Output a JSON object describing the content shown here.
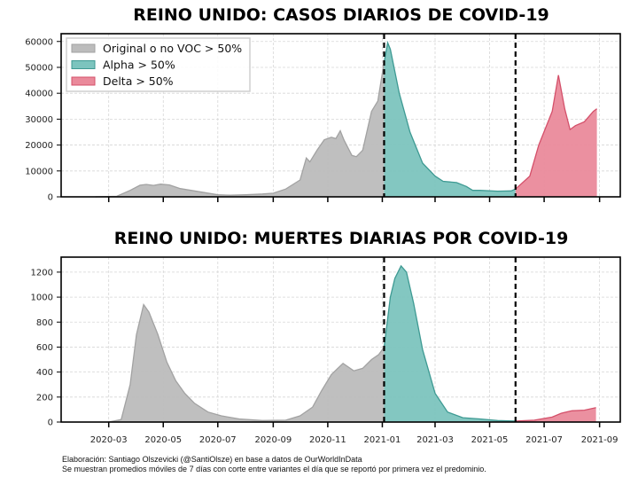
{
  "chart_data": [
    {
      "type": "area",
      "title": "REINO UNIDO: CASOS DIARIOS DE COVID-19",
      "xlim": [
        "2020-01-08",
        "2021-09-24"
      ],
      "ylim": [
        0,
        63000
      ],
      "yticks": [
        0,
        10000,
        20000,
        30000,
        40000,
        50000,
        60000
      ],
      "xticks": [
        "2020-03",
        "2020-05",
        "2020-07",
        "2020-09",
        "2020-11",
        "2021-01",
        "2021-03",
        "2021-05",
        "2021-07",
        "2021-09"
      ],
      "xtick_labels_shown": false,
      "grid": true,
      "legend_position": "top-left",
      "vlines": [
        "2021-01-03",
        "2021-05-30"
      ],
      "series": [
        {
          "name": "Original o no VOC > 50%",
          "color": "#bcbcbc",
          "stroke": "#a2a2a2",
          "points": [
            [
              "2020-02-15",
              0
            ],
            [
              "2020-03-10",
              200
            ],
            [
              "2020-03-25",
              2500
            ],
            [
              "2020-04-05",
              4500
            ],
            [
              "2020-04-12",
              4800
            ],
            [
              "2020-04-20",
              4400
            ],
            [
              "2020-04-28",
              4900
            ],
            [
              "2020-05-08",
              4600
            ],
            [
              "2020-05-20",
              3200
            ],
            [
              "2020-06-10",
              2000
            ],
            [
              "2020-07-01",
              800
            ],
            [
              "2020-07-15",
              600
            ],
            [
              "2020-08-01",
              800
            ],
            [
              "2020-08-20",
              1100
            ],
            [
              "2020-09-01",
              1400
            ],
            [
              "2020-09-15",
              3000
            ],
            [
              "2020-10-01",
              6500
            ],
            [
              "2020-10-08",
              15000
            ],
            [
              "2020-10-12",
              13500
            ],
            [
              "2020-10-20",
              18000
            ],
            [
              "2020-10-28",
              22000
            ],
            [
              "2020-11-05",
              23000
            ],
            [
              "2020-11-10",
              22500
            ],
            [
              "2020-11-15",
              25500
            ],
            [
              "2020-11-19",
              22000
            ],
            [
              "2020-11-28",
              16000
            ],
            [
              "2020-12-03",
              15500
            ],
            [
              "2020-12-10",
              18000
            ],
            [
              "2020-12-20",
              33000
            ],
            [
              "2020-12-27",
              37000
            ],
            [
              "2021-01-03",
              52000
            ]
          ]
        },
        {
          "name": "Alpha > 50%",
          "color": "#7cc4be",
          "stroke": "#3e9a93",
          "points": [
            [
              "2021-01-03",
              52000
            ],
            [
              "2021-01-07",
              59500
            ],
            [
              "2021-01-10",
              57000
            ],
            [
              "2021-01-20",
              40000
            ],
            [
              "2021-02-01",
              25000
            ],
            [
              "2021-02-15",
              13000
            ],
            [
              "2021-03-01",
              8000
            ],
            [
              "2021-03-10",
              6000
            ],
            [
              "2021-03-25",
              5500
            ],
            [
              "2021-04-05",
              4000
            ],
            [
              "2021-04-12",
              2500
            ],
            [
              "2021-04-20",
              2500
            ],
            [
              "2021-05-10",
              2200
            ],
            [
              "2021-05-25",
              2300
            ],
            [
              "2021-05-30",
              3000
            ]
          ]
        },
        {
          "name": "Delta > 50%",
          "color": "#ea8a9b",
          "stroke": "#d4506a",
          "points": [
            [
              "2021-05-30",
              3000
            ],
            [
              "2021-06-15",
              8000
            ],
            [
              "2021-06-25",
              20000
            ],
            [
              "2021-07-10",
              33000
            ],
            [
              "2021-07-17",
              47000
            ],
            [
              "2021-07-24",
              34000
            ],
            [
              "2021-07-30",
              26000
            ],
            [
              "2021-08-05",
              27500
            ],
            [
              "2021-08-15",
              29000
            ],
            [
              "2021-08-25",
              33000
            ],
            [
              "2021-08-29",
              34000
            ]
          ]
        }
      ]
    },
    {
      "type": "area",
      "title": "REINO UNIDO: MUERTES DIARIAS POR COVID-19",
      "xlim": [
        "2020-01-08",
        "2021-09-24"
      ],
      "ylim": [
        0,
        1320
      ],
      "yticks": [
        0,
        200,
        400,
        600,
        800,
        1000,
        1200
      ],
      "xticks": [
        "2020-03",
        "2020-05",
        "2020-07",
        "2020-09",
        "2020-11",
        "2021-01",
        "2021-03",
        "2021-05",
        "2021-07",
        "2021-09"
      ],
      "xtick_labels_shown": true,
      "grid": true,
      "vlines": [
        "2021-01-03",
        "2021-05-30"
      ],
      "series": [
        {
          "color": "#bcbcbc",
          "stroke": "#a2a2a2",
          "points": [
            [
              "2020-03-01",
              0
            ],
            [
              "2020-03-15",
              20
            ],
            [
              "2020-03-25",
              300
            ],
            [
              "2020-04-01",
              700
            ],
            [
              "2020-04-09",
              940
            ],
            [
              "2020-04-15",
              880
            ],
            [
              "2020-04-25",
              700
            ],
            [
              "2020-05-05",
              480
            ],
            [
              "2020-05-15",
              330
            ],
            [
              "2020-05-25",
              230
            ],
            [
              "2020-06-05",
              150
            ],
            [
              "2020-06-20",
              80
            ],
            [
              "2020-07-05",
              50
            ],
            [
              "2020-07-25",
              25
            ],
            [
              "2020-08-20",
              12
            ],
            [
              "2020-09-15",
              15
            ],
            [
              "2020-10-01",
              50
            ],
            [
              "2020-10-15",
              120
            ],
            [
              "2020-10-25",
              250
            ],
            [
              "2020-11-05",
              380
            ],
            [
              "2020-11-18",
              470
            ],
            [
              "2020-11-30",
              410
            ],
            [
              "2020-12-10",
              430
            ],
            [
              "2020-12-20",
              500
            ],
            [
              "2020-12-28",
              540
            ],
            [
              "2021-01-03",
              600
            ]
          ]
        },
        {
          "color": "#7cc4be",
          "stroke": "#3e9a93",
          "points": [
            [
              "2021-01-03",
              600
            ],
            [
              "2021-01-10",
              1000
            ],
            [
              "2021-01-15",
              1150
            ],
            [
              "2021-01-22",
              1250
            ],
            [
              "2021-01-28",
              1200
            ],
            [
              "2021-02-05",
              950
            ],
            [
              "2021-02-15",
              580
            ],
            [
              "2021-03-01",
              230
            ],
            [
              "2021-03-15",
              80
            ],
            [
              "2021-04-01",
              35
            ],
            [
              "2021-04-20",
              25
            ],
            [
              "2021-05-10",
              12
            ],
            [
              "2021-05-30",
              8
            ]
          ]
        },
        {
          "color": "#ea8a9b",
          "stroke": "#d4506a",
          "points": [
            [
              "2021-05-30",
              8
            ],
            [
              "2021-06-20",
              15
            ],
            [
              "2021-07-10",
              40
            ],
            [
              "2021-07-20",
              70
            ],
            [
              "2021-08-01",
              90
            ],
            [
              "2021-08-15",
              95
            ],
            [
              "2021-08-28",
              115
            ]
          ]
        }
      ]
    }
  ],
  "footer": {
    "line1": "Elaboración: Santiago Olszevicki (@SantiOlsze) en base a datos de OurWorldInData",
    "line2": "Se muestran promedios móviles de 7 días con corte entre variantes el día que se reportó por primera vez el predominio."
  }
}
